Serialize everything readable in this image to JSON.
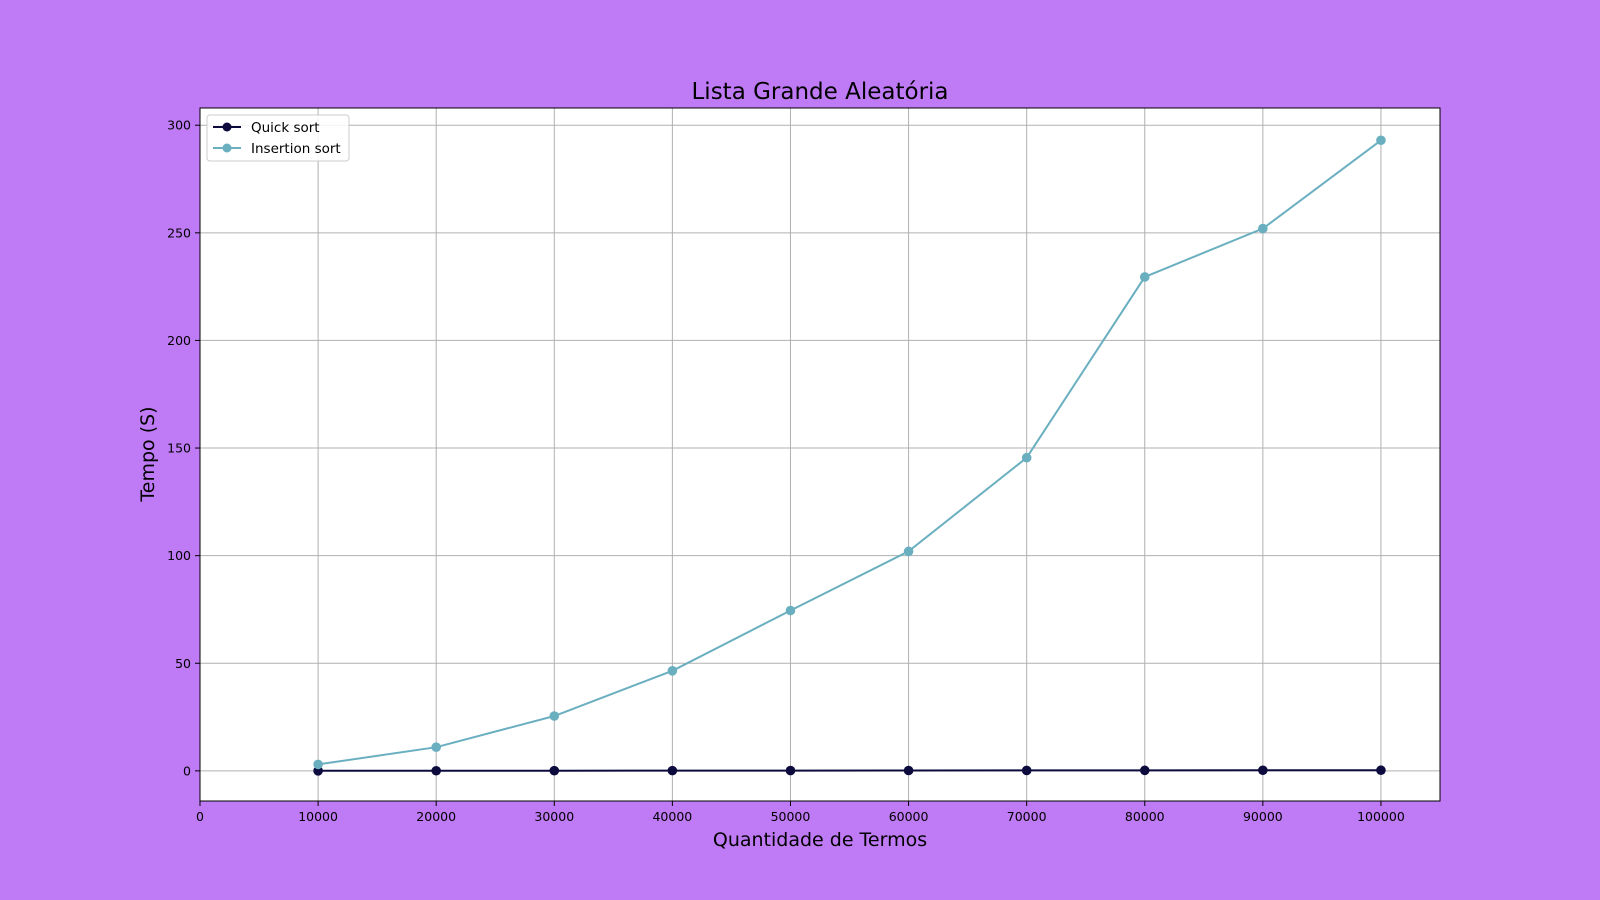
{
  "chart_data": {
    "type": "line",
    "title": "Lista Grande Aleatória",
    "xlabel": "Quantidade de Termos",
    "ylabel": "Tempo (S)",
    "x": [
      10000,
      20000,
      30000,
      40000,
      50000,
      60000,
      70000,
      80000,
      90000,
      100000
    ],
    "xlim": [
      0,
      105000
    ],
    "ylim": [
      -14,
      308
    ],
    "xticks": [
      0,
      10000,
      20000,
      30000,
      40000,
      50000,
      60000,
      70000,
      80000,
      90000,
      100000
    ],
    "yticks": [
      0,
      50,
      100,
      150,
      200,
      250,
      300
    ],
    "grid": true,
    "legend_position": "top-left",
    "background_color": "#bf7af5",
    "series": [
      {
        "name": "Quick sort",
        "color": "#0d0b3d",
        "values": [
          0.02,
          0.05,
          0.08,
          0.11,
          0.14,
          0.17,
          0.2,
          0.24,
          0.27,
          0.3
        ]
      },
      {
        "name": "Insertion sort",
        "color": "#6aafc0",
        "values": [
          3,
          11,
          25.5,
          46.5,
          74.5,
          102,
          145.5,
          229.5,
          252,
          293
        ]
      }
    ]
  }
}
